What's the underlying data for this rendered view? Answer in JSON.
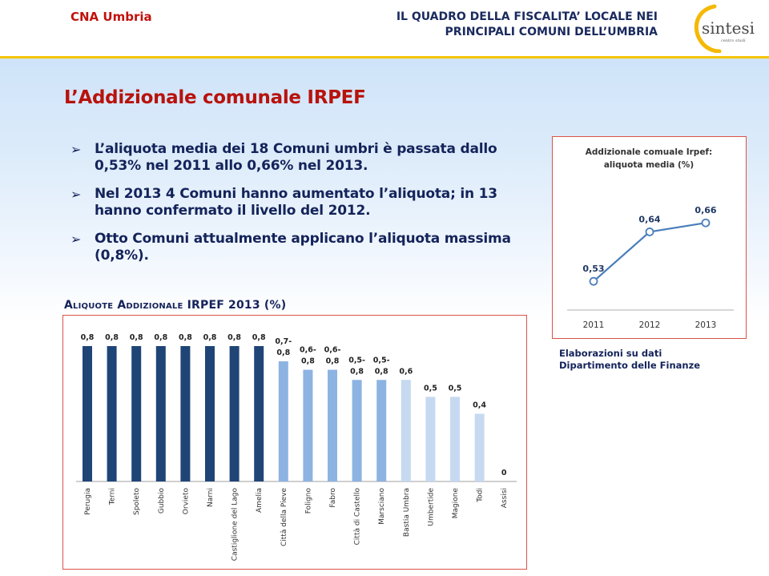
{
  "header": {
    "brand": "CNA Umbria",
    "title_line1": "IL QUADRO DELLA FISCALITA’ LOCALE NEI",
    "title_line2": "PRINCIPALI COMUNI DELL’UMBRIA",
    "logo_text": "sintesi",
    "logo_subtext": "centro studi"
  },
  "page_title": "L’Addizionale comunale IRPEF",
  "bullets": [
    {
      "line1": "L’aliquota media dei 18 Comuni umbri è passata dallo",
      "line2": "0,53% nel 2011 allo 0,66% nel 2013."
    },
    {
      "line1": "Nel 2013 4 Comuni hanno aumentato l’aliquota; in 13",
      "line2": "hanno confermato il livello del 2012."
    },
    {
      "line1": "Otto Comuni attualmente applicano l’aliquota massima",
      "line2": "(0,8%)."
    }
  ],
  "bullet_marker": "➢",
  "source_note": {
    "line1": "Elaborazioni su dati",
    "line2": "Dipartimento delle Finanze"
  },
  "colors": {
    "brand_red": "#c0120c",
    "navy_text": "#14235a",
    "bar_dark": "#1f4577",
    "bar_mid": "#8db3e2",
    "bar_light": "#c6d9f0",
    "line_blue": "#4a7ebb",
    "border_red": "#d9534a",
    "accent_yellow": "#f5c400"
  },
  "chart_data": [
    {
      "type": "bar",
      "title": "Aliquote Addizionale IRPEF 2013 (%)",
      "xlabel": "",
      "ylabel": "",
      "ylim": [
        0,
        0.8
      ],
      "grid": false,
      "categories": [
        "Perugia",
        "Terni",
        "Spoleto",
        "Gubbio",
        "Orvieto",
        "Narni",
        "Castiglione del Lago",
        "Amelia",
        "Città della Pieve",
        "Foligno",
        "Fabro",
        "Città di Castello",
        "Marsciano",
        "Bastia Umbra",
        "Umbertide",
        "Magione",
        "Todi",
        "Assisi"
      ],
      "values": [
        0.8,
        0.8,
        0.8,
        0.8,
        0.8,
        0.8,
        0.8,
        0.8,
        0.71,
        0.66,
        0.66,
        0.6,
        0.6,
        0.6,
        0.5,
        0.5,
        0.4,
        0
      ],
      "labels": [
        "0,8",
        "0,8",
        "0,8",
        "0,8",
        "0,8",
        "0,8",
        "0,8",
        "0,8",
        "0,7-\n0,8",
        "0,6-\n0,8",
        "0,6-\n0,8",
        "0,5-\n0,8",
        "0,5-\n0,8",
        "0,6",
        "0,5",
        "0,5",
        "0,4",
        "0"
      ],
      "tiers": [
        "dark",
        "dark",
        "dark",
        "dark",
        "dark",
        "dark",
        "dark",
        "dark",
        "mid",
        "mid",
        "mid",
        "mid",
        "mid",
        "light",
        "light",
        "light",
        "light",
        "light"
      ]
    },
    {
      "type": "line",
      "title": "Addizionale comuale Irpef: aliquota media (%)",
      "title_line1": "Addizionale comuale Irpef:",
      "title_line2": "aliquota media (%)",
      "xlabel": "",
      "ylabel": "",
      "ylim": [
        0.5,
        0.68
      ],
      "grid": false,
      "x": [
        "2011",
        "2012",
        "2013"
      ],
      "values": [
        0.53,
        0.64,
        0.66
      ],
      "labels": [
        "0,53",
        "0,64",
        "0,66"
      ]
    }
  ]
}
